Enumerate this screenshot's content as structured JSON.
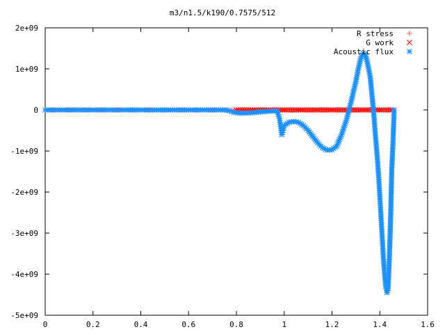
{
  "chart_data": {
    "type": "scatter",
    "title": "m3/n1.5/k190/0.7575/512",
    "xlabel": "",
    "ylabel": "",
    "xlim": [
      0,
      1.6
    ],
    "ylim": [
      -5000000000,
      2000000000
    ],
    "x_ticks": [
      {
        "value": 0,
        "label": "0"
      },
      {
        "value": 0.2,
        "label": "0.2"
      },
      {
        "value": 0.4,
        "label": "0.4"
      },
      {
        "value": 0.6,
        "label": "0.6"
      },
      {
        "value": 0.8,
        "label": "0.8"
      },
      {
        "value": 1.0,
        "label": "1"
      },
      {
        "value": 1.2,
        "label": "1.2"
      },
      {
        "value": 1.4,
        "label": "1.4"
      },
      {
        "value": 1.6,
        "label": "1.6"
      }
    ],
    "y_ticks": [
      {
        "value": 2000000000,
        "label": "2e+09"
      },
      {
        "value": 1000000000,
        "label": "1e+09"
      },
      {
        "value": 0,
        "label": "0"
      },
      {
        "value": -1000000000,
        "label": "-1e+09"
      },
      {
        "value": -2000000000,
        "label": "-2e+09"
      },
      {
        "value": -3000000000,
        "label": "-3e+09"
      },
      {
        "value": -4000000000,
        "label": "-4e+09"
      },
      {
        "value": -5000000000,
        "label": "-5e+09"
      }
    ],
    "legend_position": "top-right",
    "series": [
      {
        "name": "R stress",
        "marker": "plus",
        "color": "#ff6666",
        "points": [
          [
            0,
            0
          ],
          [
            0.2,
            0
          ],
          [
            0.4,
            0
          ],
          [
            0.6,
            0
          ],
          [
            0.8,
            0
          ],
          [
            1.0,
            0
          ],
          [
            1.2,
            0
          ],
          [
            1.4,
            0
          ],
          [
            1.46,
            0
          ]
        ]
      },
      {
        "name": "G work",
        "marker": "cross",
        "color": "#ff0000",
        "points": [
          [
            0.8,
            0
          ],
          [
            0.85,
            0
          ],
          [
            0.9,
            0
          ],
          [
            0.95,
            0
          ],
          [
            1.0,
            0
          ],
          [
            1.05,
            0
          ],
          [
            1.1,
            0
          ],
          [
            1.15,
            0
          ],
          [
            1.2,
            0
          ],
          [
            1.25,
            0
          ],
          [
            1.3,
            0
          ],
          [
            1.35,
            0
          ],
          [
            1.4,
            0
          ],
          [
            1.45,
            0
          ],
          [
            1.46,
            0
          ]
        ]
      },
      {
        "name": "Acoustic flux",
        "marker": "star",
        "color": "#1e90ff",
        "points": [
          [
            0,
            0
          ],
          [
            0.05,
            0
          ],
          [
            0.1,
            0
          ],
          [
            0.15,
            0
          ],
          [
            0.2,
            0
          ],
          [
            0.25,
            0
          ],
          [
            0.3,
            0
          ],
          [
            0.35,
            0
          ],
          [
            0.4,
            0
          ],
          [
            0.45,
            0
          ],
          [
            0.5,
            0
          ],
          [
            0.55,
            0
          ],
          [
            0.6,
            0
          ],
          [
            0.65,
            0
          ],
          [
            0.7,
            0
          ],
          [
            0.75,
            0
          ],
          [
            0.77,
            -20000000
          ],
          [
            0.79,
            -60000000
          ],
          [
            0.82,
            -80000000
          ],
          [
            0.86,
            -70000000
          ],
          [
            0.9,
            -50000000
          ],
          [
            0.94,
            -30000000
          ],
          [
            0.97,
            -20000000
          ],
          [
            0.98,
            -200000000
          ],
          [
            0.985,
            -400000000
          ],
          [
            0.99,
            -600000000
          ],
          [
            0.995,
            -500000000
          ],
          [
            1.0,
            -380000000
          ],
          [
            1.02,
            -300000000
          ],
          [
            1.04,
            -280000000
          ],
          [
            1.06,
            -300000000
          ],
          [
            1.08,
            -380000000
          ],
          [
            1.1,
            -500000000
          ],
          [
            1.12,
            -650000000
          ],
          [
            1.14,
            -800000000
          ],
          [
            1.16,
            -920000000
          ],
          [
            1.18,
            -980000000
          ],
          [
            1.2,
            -970000000
          ],
          [
            1.22,
            -880000000
          ],
          [
            1.24,
            -600000000
          ],
          [
            1.26,
            -250000000
          ],
          [
            1.28,
            200000000
          ],
          [
            1.3,
            700000000
          ],
          [
            1.31,
            1000000000
          ],
          [
            1.32,
            1250000000
          ],
          [
            1.33,
            1380000000
          ],
          [
            1.34,
            1350000000
          ],
          [
            1.35,
            1100000000
          ],
          [
            1.36,
            800000000
          ],
          [
            1.365,
            500000000
          ],
          [
            1.37,
            200000000
          ],
          [
            1.375,
            -100000000
          ],
          [
            1.38,
            -500000000
          ],
          [
            1.385,
            -850000000
          ],
          [
            1.39,
            -1200000000
          ],
          [
            1.395,
            -1600000000
          ],
          [
            1.4,
            -2100000000
          ],
          [
            1.405,
            -2600000000
          ],
          [
            1.41,
            -3100000000
          ],
          [
            1.415,
            -3600000000
          ],
          [
            1.42,
            -4000000000
          ],
          [
            1.425,
            -4300000000
          ],
          [
            1.43,
            -4450000000
          ],
          [
            1.435,
            -4350000000
          ],
          [
            1.44,
            -3600000000
          ],
          [
            1.445,
            -2700000000
          ],
          [
            1.45,
            -1450000000
          ],
          [
            1.455,
            -800000000
          ],
          [
            1.46,
            0
          ]
        ]
      }
    ]
  }
}
